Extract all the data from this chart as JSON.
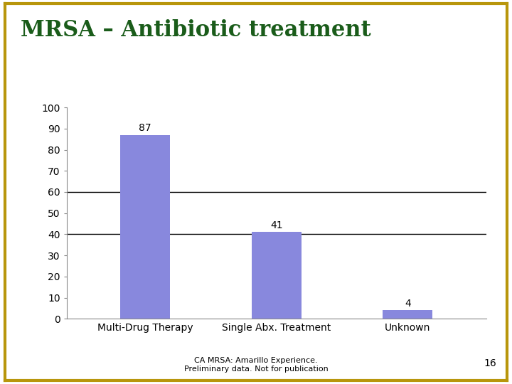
{
  "title": "MRSA – Antibiotic treatment",
  "title_color": "#1a5c1a",
  "categories": [
    "Multi-Drug Therapy",
    "Single Abx. Treatment",
    "Unknown"
  ],
  "values": [
    87,
    41,
    4
  ],
  "bar_color": "#8888dd",
  "ylim": [
    0,
    100
  ],
  "yticks": [
    0,
    10,
    20,
    30,
    40,
    50,
    60,
    70,
    80,
    90,
    100
  ],
  "grid_lines": [
    40,
    60
  ],
  "grid_color": "#000000",
  "value_labels": [
    "87",
    "41",
    "4"
  ],
  "footer_line1": "CA MRSA: Amarillo Experience.",
  "footer_line2": "Preliminary data. Not for publication",
  "footer_page": "16",
  "bg_color": "#ffffff",
  "border_top_color": "#b8960c",
  "border_left_color": "#b8960c",
  "title_fontsize": 22,
  "tick_fontsize": 10,
  "label_fontsize": 10,
  "value_fontsize": 10,
  "footer_fontsize": 8
}
